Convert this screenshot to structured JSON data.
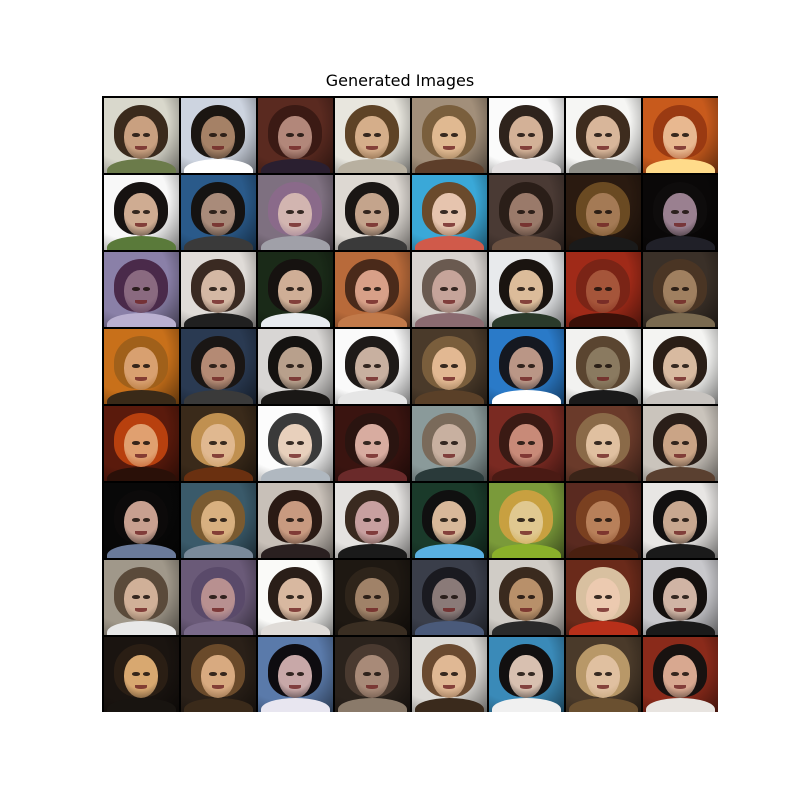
{
  "figure": {
    "title": "Generated Images"
  },
  "grid": {
    "rows": 8,
    "cols": 8,
    "border_color": "#000000",
    "tiles": [
      {
        "bg": "#d9d8cc",
        "hair": "#3a2a1c",
        "skin": "#c9a080",
        "clothes": "#6b7b4a"
      },
      {
        "bg": "#cdd4e0",
        "hair": "#1b1612",
        "skin": "#a58166",
        "clothes": "#ffffff"
      },
      {
        "bg": "#5a2a20",
        "hair": "#3b1a14",
        "skin": "#b2877a",
        "clothes": "#2a1f30"
      },
      {
        "bg": "#e8e6de",
        "hair": "#5e4326",
        "skin": "#d5ae8a",
        "clothes": "#b8b0a0"
      },
      {
        "bg": "#a28f7a",
        "hair": "#7a5f3d",
        "skin": "#e0b991",
        "clothes": "#5d3e2a"
      },
      {
        "bg": "#fbfbfb",
        "hair": "#2e231c",
        "skin": "#d3b197",
        "clothes": "#e2dfe0"
      },
      {
        "bg": "#f6f6f4",
        "hair": "#3e2c1e",
        "skin": "#d8b69a",
        "clothes": "#8d8d86"
      },
      {
        "bg": "#c85a1c",
        "hair": "#9a3a12",
        "skin": "#e8b890",
        "clothes": "#ffdb8a"
      },
      {
        "bg": "#f8f8f8",
        "hair": "#161211",
        "skin": "#cfac92",
        "clothes": "#5a7a3a"
      },
      {
        "bg": "#2a5a8a",
        "hair": "#151312",
        "skin": "#a98b7a",
        "clothes": "#3a3a3a"
      },
      {
        "bg": "#7e7080",
        "hair": "#8a6a8a",
        "skin": "#d2b5b0",
        "clothes": "#a0a0a8"
      },
      {
        "bg": "#ddd8d2",
        "hair": "#1a1614",
        "skin": "#c4a48c",
        "clothes": "#3a3a3a"
      },
      {
        "bg": "#3aa8d8",
        "hair": "#6a4a2c",
        "skin": "#e6c4ae",
        "clothes": "#d05a4a"
      },
      {
        "bg": "#4a3a34",
        "hair": "#2a1e18",
        "skin": "#9a7a6a",
        "clothes": "#6a5040"
      },
      {
        "bg": "#2a1a10",
        "hair": "#6a4a22",
        "skin": "#a47a55",
        "clothes": "#1a1a1a"
      },
      {
        "bg": "#0a0808",
        "hair": "#0e0c0c",
        "skin": "#9a8090",
        "clothes": "#202028"
      },
      {
        "bg": "#8a80a8",
        "hair": "#4a2a4a",
        "skin": "#8a6a80",
        "clothes": "#bab0d0"
      },
      {
        "bg": "#e0dcd8",
        "hair": "#3a2a22",
        "skin": "#d4b8a4",
        "clothes": "#202020"
      },
      {
        "bg": "#1a2a18",
        "hair": "#161210",
        "skin": "#cfae96",
        "clothes": "#e8ecf0"
      },
      {
        "bg": "#b86a3a",
        "hair": "#4a2a1a",
        "skin": "#d8a088",
        "clothes": "#c27a4a"
      },
      {
        "bg": "#d8d4d0",
        "hair": "#6a5a50",
        "skin": "#c6a49a",
        "clothes": "#8a6a70"
      },
      {
        "bg": "#e8eaec",
        "hair": "#1a1410",
        "skin": "#dcbc9a",
        "clothes": "#2a3a2a"
      },
      {
        "bg": "#a02a18",
        "hair": "#7a2416",
        "skin": "#a5553a",
        "clothes": "#3a1008"
      },
      {
        "bg": "#3a3028",
        "hair": "#4a3524",
        "skin": "#a08060",
        "clothes": "#7a6a50"
      },
      {
        "bg": "#c8701a",
        "hair": "#a0601a",
        "skin": "#d8a070",
        "clothes": "#3a2a18"
      },
      {
        "bg": "#2a3a52",
        "hair": "#1a1614",
        "skin": "#b48a74",
        "clothes": "#3a3a3a"
      },
      {
        "bg": "#d8d6d4",
        "hair": "#141210",
        "skin": "#b8a08c",
        "clothes": "#1a1816"
      },
      {
        "bg": "#fafafa",
        "hair": "#1e1a18",
        "skin": "#c8b0a0",
        "clothes": "#e6e6e6"
      },
      {
        "bg": "#4a3a2a",
        "hair": "#7a5e3c",
        "skin": "#e2b892",
        "clothes": "#5a4028"
      },
      {
        "bg": "#2a7ac8",
        "hair": "#151820",
        "skin": "#ba9686",
        "clothes": "#ffffff"
      },
      {
        "bg": "#f2f2f0",
        "hair": "#5a4530",
        "skin": "#8a7a60",
        "clothes": "#1a1a1a"
      },
      {
        "bg": "#f4f4f2",
        "hair": "#2a1e16",
        "skin": "#d8baa0",
        "clothes": "#c8c4c0"
      },
      {
        "bg": "#5a1a0c",
        "hair": "#b8400e",
        "skin": "#e0a070",
        "clothes": "#2a1008"
      },
      {
        "bg": "#3a2a1a",
        "hair": "#c09050",
        "skin": "#e0b890",
        "clothes": "#6a3010"
      },
      {
        "bg": "#fcfcfc",
        "hair": "#3a3a3a",
        "skin": "#e8d0bc",
        "clothes": "#b0b8c0"
      },
      {
        "bg": "#3a1410",
        "hair": "#2a1410",
        "skin": "#d8aca0",
        "clothes": "#6a2a2a"
      },
      {
        "bg": "#8a9a9a",
        "hair": "#7a6a5a",
        "skin": "#c8b0a0",
        "clothes": "#2a3a3a"
      },
      {
        "bg": "#7a2a22",
        "hair": "#3a1a14",
        "skin": "#c88a78",
        "clothes": "#4a1a14"
      },
      {
        "bg": "#6a3a2a",
        "hair": "#8a6a48",
        "skin": "#e0c0a0",
        "clothes": "#3a2418"
      },
      {
        "bg": "#cac4bc",
        "hair": "#2a1e18",
        "skin": "#caa486",
        "clothes": "#5a4030"
      },
      {
        "bg": "#080808",
        "hair": "#0c0a0a",
        "skin": "#c8a090",
        "clothes": "#6a7a9a"
      },
      {
        "bg": "#3a5a6a",
        "hair": "#7a5a30",
        "skin": "#d8b080",
        "clothes": "#7a8a9a"
      },
      {
        "bg": "#c8c0b8",
        "hair": "#2a1a14",
        "skin": "#c89a80",
        "clothes": "#2a2020"
      },
      {
        "bg": "#e4e2e0",
        "hair": "#3a2a20",
        "skin": "#c8a0a0",
        "clothes": "#1a1a1a"
      },
      {
        "bg": "#1a3a2a",
        "hair": "#101010",
        "skin": "#d8b89a",
        "clothes": "#5ab0e0"
      },
      {
        "bg": "#7a9a3a",
        "hair": "#c8a040",
        "skin": "#e0c890",
        "clothes": "#8ab02a"
      },
      {
        "bg": "#5a2a20",
        "hair": "#7a4020",
        "skin": "#b8805a",
        "clothes": "#4a2010"
      },
      {
        "bg": "#e8e6e4",
        "hair": "#121010",
        "skin": "#c8a890",
        "clothes": "#1a1a1a"
      },
      {
        "bg": "#a0988a",
        "hair": "#5a4a3a",
        "skin": "#d0b098",
        "clothes": "#e8e8e8"
      },
      {
        "bg": "#6a5a78",
        "hair": "#5a4a6a",
        "skin": "#b89090",
        "clothes": "#7a6a8a"
      },
      {
        "bg": "#fafaf8",
        "hair": "#2a1e18",
        "skin": "#d8b8a0",
        "clothes": "#e0dcd8"
      },
      {
        "bg": "#1e1812",
        "hair": "#2e241a",
        "skin": "#a08268",
        "clothes": "#3a2e22"
      },
      {
        "bg": "#3a3e4a",
        "hair": "#1a1a20",
        "skin": "#8a7a78",
        "clothes": "#4a5a7a"
      },
      {
        "bg": "#d0ccc6",
        "hair": "#3a2a1e",
        "skin": "#b8906a",
        "clothes": "#2a2a2a"
      },
      {
        "bg": "#6a2a1a",
        "hair": "#d8c0a0",
        "skin": "#eccab0",
        "clothes": "#b8301a"
      },
      {
        "bg": "#c8c8cc",
        "hair": "#14100e",
        "skin": "#d0b4a4",
        "clothes": "#1a1a1a"
      },
      {
        "bg": "#1a1410",
        "hair": "#2a1e14",
        "skin": "#d8a870",
        "clothes": "#181410"
      },
      {
        "bg": "#2a2018",
        "hair": "#6a4a2a",
        "skin": "#d8aa80",
        "clothes": "#3a2a1a"
      },
      {
        "bg": "#5a7aaa",
        "hair": "#0e0c10",
        "skin": "#c8a8a8",
        "clothes": "#e8e6f0"
      },
      {
        "bg": "#2a221c",
        "hair": "#4a3a30",
        "skin": "#a88a78",
        "clothes": "#8a7a6a"
      },
      {
        "bg": "#dcdad6",
        "hair": "#6a4a30",
        "skin": "#e0b894",
        "clothes": "#3a2a1c"
      },
      {
        "bg": "#3a8ab8",
        "hair": "#121010",
        "skin": "#d8c0b0",
        "clothes": "#f0f0f0"
      },
      {
        "bg": "#4a3a2a",
        "hair": "#b89868",
        "skin": "#e0c0a0",
        "clothes": "#6a5030"
      },
      {
        "bg": "#8a2a1a",
        "hair": "#181210",
        "skin": "#d8a890",
        "clothes": "#e8e4e0"
      }
    ]
  }
}
